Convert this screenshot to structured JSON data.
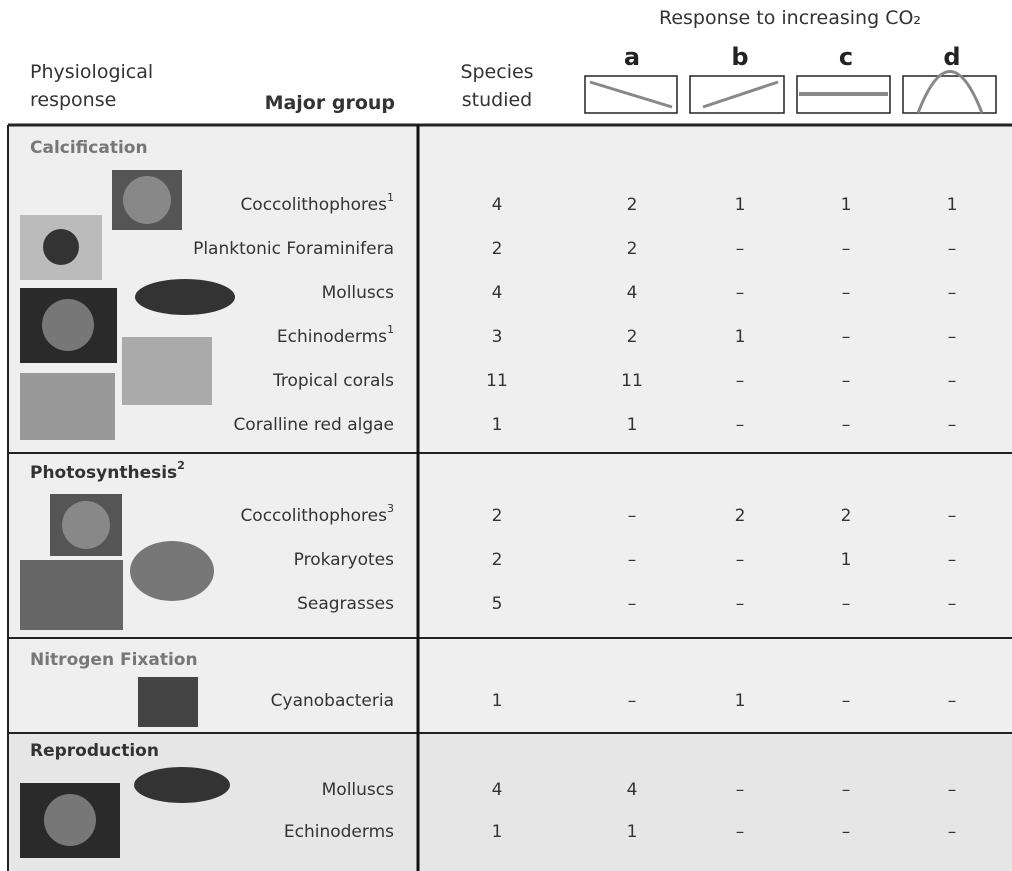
{
  "header": {
    "physiological_response": "Physiological response",
    "major_group": "Major group",
    "species_studied": "Species studied",
    "response_title": "Response to increasing CO₂",
    "response_columns": [
      "a",
      "b",
      "c",
      "d"
    ]
  },
  "sections": [
    {
      "name": "Calcification",
      "rows": [
        {
          "group": "Coccolithophores",
          "note": "1",
          "species": 4,
          "responses": [
            2,
            1,
            1,
            1
          ]
        },
        {
          "group": "Planktonic Foraminifera",
          "species": 2,
          "responses": [
            2,
            "–",
            "–",
            "–"
          ]
        },
        {
          "group": "Molluscs",
          "species": 4,
          "responses": [
            4,
            "–",
            "–",
            "–"
          ]
        },
        {
          "group": "Echinoderms",
          "note": "1",
          "species": 3,
          "responses": [
            2,
            1,
            "–",
            "–"
          ]
        },
        {
          "group": "Tropical corals",
          "species": 11,
          "responses": [
            11,
            "–",
            "–",
            "–"
          ]
        },
        {
          "group": "Coralline red algae",
          "species": 1,
          "responses": [
            1,
            "–",
            "–",
            "–"
          ]
        }
      ]
    },
    {
      "name": "Photosynthesis",
      "note": "2",
      "rows": [
        {
          "group": "Coccolithophores",
          "note": "3",
          "species": 2,
          "responses": [
            "–",
            2,
            2,
            "–"
          ]
        },
        {
          "group": "Prokaryotes",
          "species": 2,
          "responses": [
            "–",
            "–",
            1,
            "–"
          ]
        },
        {
          "group": "Seagrasses",
          "species": 5,
          "responses": [
            "–",
            "–",
            "–",
            "–"
          ]
        }
      ]
    },
    {
      "name": "Nitrogen Fixation",
      "rows": [
        {
          "group": "Cyanobacteria",
          "species": 1,
          "responses": [
            "–",
            1,
            "–",
            "–"
          ]
        }
      ]
    },
    {
      "name": "Reproduction",
      "rows": [
        {
          "group": "Molluscs",
          "species": 4,
          "responses": [
            4,
            "–",
            "–",
            "–"
          ]
        },
        {
          "group": "Echinoderms",
          "species": 1,
          "responses": [
            1,
            "–",
            "–",
            "–"
          ]
        }
      ]
    }
  ]
}
